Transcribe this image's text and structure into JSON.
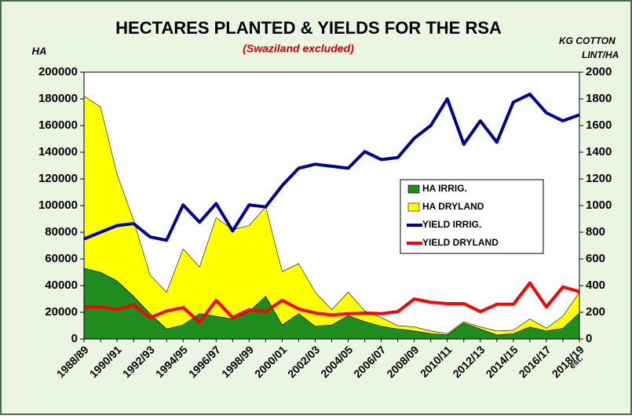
{
  "chart_data": {
    "type": "combo",
    "title": "HECTARES PLANTED & YIELDS FOR THE RSA",
    "subtitle": "(Swaziland excluded)",
    "y_label": "HA",
    "y2_label": [
      "KG COTTON",
      "LINT/HA"
    ],
    "annotation": "est.",
    "categories": [
      "1988/89",
      null,
      "1990/91",
      null,
      "1992/93",
      null,
      "1994/95",
      null,
      "1996/97",
      null,
      "1998/99",
      null,
      "2000/01",
      null,
      "2002/03",
      null,
      "2004/05",
      null,
      "2006/07",
      null,
      "2008/09",
      null,
      "2010/11",
      null,
      "2012/13",
      null,
      "2014/15",
      null,
      "2016/17",
      null,
      "2018/19"
    ],
    "ylim": [
      0,
      200000
    ],
    "yticks": [
      0,
      20000,
      40000,
      60000,
      80000,
      100000,
      120000,
      140000,
      160000,
      180000,
      200000
    ],
    "y2lim": [
      0,
      2000
    ],
    "y2ticks": [
      0,
      200,
      400,
      600,
      800,
      1000,
      1200,
      1400,
      1600,
      1800,
      2000
    ],
    "grid": false,
    "legend": "center-right",
    "series": [
      {
        "name": "HA IRRIG.",
        "type": "area",
        "stacked": true,
        "color": "#1e8c1e",
        "values": [
          53000,
          50000,
          43500,
          32000,
          19000,
          7500,
          10500,
          19000,
          17000,
          15000,
          20500,
          32000,
          10500,
          19000,
          9500,
          10500,
          17500,
          13000,
          9500,
          7500,
          6000,
          4000,
          3000,
          12000,
          7500,
          3000,
          4000,
          9000,
          6000,
          8000,
          19500
        ]
      },
      {
        "name": "HA DRYLAND",
        "type": "area",
        "stacked": true,
        "color": "#ffff00",
        "values": [
          129000,
          124000,
          80000,
          57000,
          29000,
          27500,
          57000,
          35000,
          74000,
          67000,
          64500,
          67000,
          40000,
          37500,
          25500,
          11500,
          17500,
          8000,
          6500,
          2500,
          3000,
          2000,
          1000,
          1000,
          1500,
          3000,
          2500,
          6000,
          2000,
          9000,
          15500
        ]
      },
      {
        "name": "YIELD IRRIG.",
        "type": "line",
        "axis": "y2",
        "color": "#000099",
        "values": [
          750,
          800,
          850,
          865,
          765,
          740,
          1005,
          875,
          1015,
          810,
          1005,
          990,
          1150,
          1280,
          1310,
          1295,
          1280,
          1405,
          1345,
          1360,
          1505,
          1600,
          1800,
          1460,
          1635,
          1475,
          1775,
          1835,
          1695,
          1635,
          1680
        ]
      },
      {
        "name": "YIELD DRYLAND",
        "type": "line",
        "axis": "y2",
        "color": "#ff0000",
        "values": [
          240,
          240,
          220,
          255,
          160,
          210,
          235,
          125,
          290,
          160,
          220,
          205,
          290,
          225,
          195,
          180,
          190,
          195,
          190,
          205,
          300,
          275,
          265,
          265,
          205,
          260,
          260,
          420,
          240,
          390,
          355
        ]
      }
    ]
  }
}
